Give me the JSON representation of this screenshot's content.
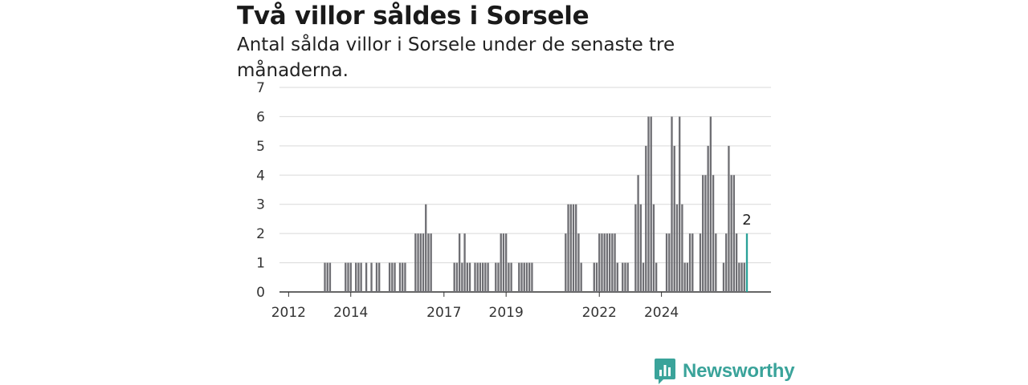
{
  "header": {
    "title": "Två villor såldes i Sorsele",
    "subtitle": "Antal sålda villor i Sorsele under de senaste tre månaderna."
  },
  "brand": {
    "name": "Newsworthy",
    "icon": "newsworthy-logo-icon",
    "color": "#3aa39a"
  },
  "chart_data": {
    "type": "bar",
    "title": "Två villor såldes i Sorsele",
    "subtitle": "Antal sålda villor i Sorsele under de senaste tre månaderna.",
    "xlabel": "",
    "ylabel": "",
    "ylim": [
      0,
      7
    ],
    "yticks": [
      0,
      1,
      2,
      3,
      4,
      5,
      6,
      7
    ],
    "xticks": [
      "2012",
      "2014",
      "2017",
      "2019",
      "2022",
      "2024"
    ],
    "grid": true,
    "bar_color": "#6e6e73",
    "highlight_color": "#2aa198",
    "start": "2012-01",
    "frequency": "monthly",
    "highlight_last": true,
    "last_value_label": "2",
    "values": [
      0,
      0,
      0,
      0,
      0,
      0,
      0,
      0,
      0,
      0,
      0,
      0,
      0,
      0,
      1,
      1,
      1,
      0,
      0,
      0,
      0,
      0,
      1,
      1,
      1,
      0,
      1,
      1,
      1,
      0,
      1,
      0,
      1,
      0,
      1,
      1,
      0,
      0,
      0,
      1,
      1,
      1,
      0,
      1,
      1,
      1,
      0,
      0,
      0,
      2,
      2,
      2,
      2,
      3,
      2,
      2,
      0,
      0,
      0,
      0,
      0,
      0,
      0,
      0,
      1,
      1,
      2,
      1,
      2,
      1,
      1,
      0,
      1,
      1,
      1,
      1,
      1,
      1,
      0,
      0,
      1,
      1,
      2,
      2,
      2,
      1,
      1,
      0,
      0,
      1,
      1,
      1,
      1,
      1,
      1,
      0,
      0,
      0,
      0,
      0,
      0,
      0,
      0,
      0,
      0,
      0,
      0,
      2,
      3,
      3,
      3,
      3,
      2,
      1,
      0,
      0,
      0,
      0,
      1,
      1,
      2,
      2,
      2,
      2,
      2,
      2,
      2,
      1,
      0,
      1,
      1,
      1,
      0,
      0,
      3,
      4,
      3,
      1,
      5,
      6,
      6,
      3,
      1,
      0,
      0,
      0,
      2,
      2,
      6,
      5,
      3,
      6,
      3,
      1,
      1,
      2,
      2,
      0,
      0,
      2,
      4,
      4,
      5,
      6,
      4,
      2,
      0,
      0,
      1,
      2,
      5,
      4,
      4,
      2,
      1,
      1,
      1,
      2
    ]
  }
}
